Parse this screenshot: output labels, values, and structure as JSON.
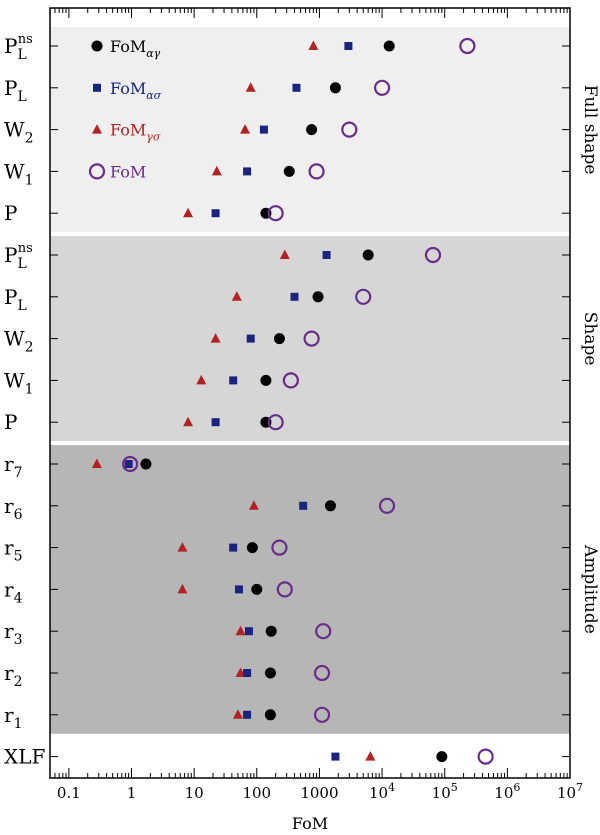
{
  "chart_data": {
    "type": "scatter",
    "xlabel": "FoM",
    "xscale": "log",
    "xlim": [
      0.05,
      10000000
    ],
    "grid": false,
    "legend_position": "top-left",
    "x_tick_labels": [
      "0.1",
      "1",
      "10",
      "100",
      "1000",
      "10⁴",
      "10⁵",
      "10⁶",
      "10⁷"
    ],
    "x_tick_values": [
      0.1,
      1,
      10,
      100,
      1000,
      10000,
      100000,
      1000000,
      10000000
    ],
    "rows": [
      "P_L^ns",
      "P_L",
      "W_2",
      "W_1",
      "P",
      "P_L^ns",
      "P_L",
      "W_2",
      "W_1",
      "P",
      "r_7",
      "r_6",
      "r_5",
      "r_4",
      "r_3",
      "r_2",
      "r_1",
      "XLF"
    ],
    "row_labels": [
      {
        "base": "P",
        "sub": "L",
        "sup": "ns"
      },
      {
        "base": "P",
        "sub": "L",
        "sup": ""
      },
      {
        "base": "W",
        "sub": "2",
        "sup": ""
      },
      {
        "base": "W",
        "sub": "1",
        "sup": ""
      },
      {
        "base": "P",
        "sub": "",
        "sup": ""
      },
      {
        "base": "P",
        "sub": "L",
        "sup": "ns"
      },
      {
        "base": "P",
        "sub": "L",
        "sup": ""
      },
      {
        "base": "W",
        "sub": "2",
        "sup": ""
      },
      {
        "base": "W",
        "sub": "1",
        "sup": ""
      },
      {
        "base": "P",
        "sub": "",
        "sup": ""
      },
      {
        "base": "r",
        "sub": "7",
        "sup": ""
      },
      {
        "base": "r",
        "sub": "6",
        "sup": ""
      },
      {
        "base": "r",
        "sub": "5",
        "sup": ""
      },
      {
        "base": "r",
        "sub": "4",
        "sup": ""
      },
      {
        "base": "r",
        "sub": "3",
        "sup": ""
      },
      {
        "base": "r",
        "sub": "2",
        "sup": ""
      },
      {
        "base": "r",
        "sub": "1",
        "sup": ""
      },
      {
        "base": "XLF",
        "sub": "",
        "sup": ""
      }
    ],
    "groups": [
      {
        "label": "Full shape",
        "rows": [
          0,
          4
        ],
        "color": "#efefef"
      },
      {
        "label": "Shape",
        "rows": [
          5,
          9
        ],
        "color": "#d6d6d6"
      },
      {
        "label": "Amplitude",
        "rows": [
          10,
          16
        ],
        "color": "#b6b6b6"
      }
    ],
    "series": [
      {
        "name": "FoM_αγ",
        "label_base": "FoM",
        "label_sub": "αγ",
        "marker": "circle-filled",
        "color": "#000000",
        "values": [
          13000,
          1800,
          750,
          330,
          140,
          6000,
          950,
          230,
          140,
          140,
          1.7,
          1500,
          85,
          100,
          170,
          165,
          165,
          90000
        ]
      },
      {
        "name": "FoM_ασ",
        "label_base": "FoM",
        "label_sub": "ασ",
        "marker": "square",
        "color": "#1a237e",
        "values": [
          2900,
          430,
          130,
          70,
          22,
          1300,
          400,
          80,
          42,
          22,
          0.9,
          550,
          42,
          52,
          75,
          70,
          70,
          1800
        ]
      },
      {
        "name": "FoM_γσ",
        "label_base": "FoM",
        "label_sub": "γσ",
        "marker": "triangle",
        "color": "#b22222",
        "values": [
          800,
          80,
          65,
          23,
          8,
          280,
          48,
          22,
          13,
          8,
          0.28,
          90,
          6.5,
          6.5,
          55,
          55,
          50,
          6500
        ]
      },
      {
        "name": "FoM",
        "label_base": "FoM",
        "label_sub": "",
        "marker": "circle-open",
        "color": "#6a2c8a",
        "values": [
          230000,
          10000,
          3000,
          900,
          200,
          65000,
          5000,
          750,
          350,
          200,
          0.95,
          12000,
          230,
          280,
          1150,
          1100,
          1100,
          450000
        ]
      }
    ]
  }
}
